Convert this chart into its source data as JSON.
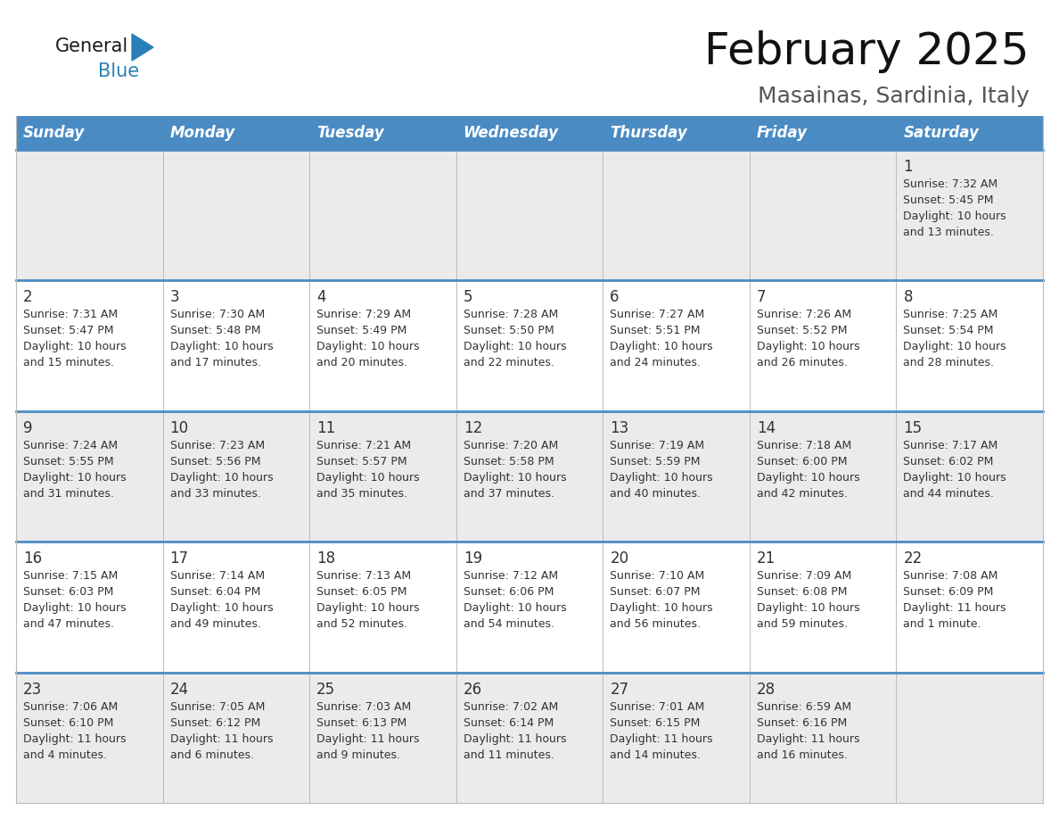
{
  "title": "February 2025",
  "subtitle": "Masainas, Sardinia, Italy",
  "days_of_week": [
    "Sunday",
    "Monday",
    "Tuesday",
    "Wednesday",
    "Thursday",
    "Friday",
    "Saturday"
  ],
  "header_bg": "#4a8bc4",
  "header_text": "#ffffff",
  "row_bg_odd": "#ebebeb",
  "row_bg_even": "#ffffff",
  "border_color": "#4a8bc4",
  "cell_border_color": "#bbbbbb",
  "text_color": "#333333",
  "calendar": [
    [
      null,
      null,
      null,
      null,
      null,
      null,
      {
        "day": 1,
        "sunrise": "7:32 AM",
        "sunset": "5:45 PM",
        "daylight": "10 hours\nand 13 minutes."
      }
    ],
    [
      {
        "day": 2,
        "sunrise": "7:31 AM",
        "sunset": "5:47 PM",
        "daylight": "10 hours\nand 15 minutes."
      },
      {
        "day": 3,
        "sunrise": "7:30 AM",
        "sunset": "5:48 PM",
        "daylight": "10 hours\nand 17 minutes."
      },
      {
        "day": 4,
        "sunrise": "7:29 AM",
        "sunset": "5:49 PM",
        "daylight": "10 hours\nand 20 minutes."
      },
      {
        "day": 5,
        "sunrise": "7:28 AM",
        "sunset": "5:50 PM",
        "daylight": "10 hours\nand 22 minutes."
      },
      {
        "day": 6,
        "sunrise": "7:27 AM",
        "sunset": "5:51 PM",
        "daylight": "10 hours\nand 24 minutes."
      },
      {
        "day": 7,
        "sunrise": "7:26 AM",
        "sunset": "5:52 PM",
        "daylight": "10 hours\nand 26 minutes."
      },
      {
        "day": 8,
        "sunrise": "7:25 AM",
        "sunset": "5:54 PM",
        "daylight": "10 hours\nand 28 minutes."
      }
    ],
    [
      {
        "day": 9,
        "sunrise": "7:24 AM",
        "sunset": "5:55 PM",
        "daylight": "10 hours\nand 31 minutes."
      },
      {
        "day": 10,
        "sunrise": "7:23 AM",
        "sunset": "5:56 PM",
        "daylight": "10 hours\nand 33 minutes."
      },
      {
        "day": 11,
        "sunrise": "7:21 AM",
        "sunset": "5:57 PM",
        "daylight": "10 hours\nand 35 minutes."
      },
      {
        "day": 12,
        "sunrise": "7:20 AM",
        "sunset": "5:58 PM",
        "daylight": "10 hours\nand 37 minutes."
      },
      {
        "day": 13,
        "sunrise": "7:19 AM",
        "sunset": "5:59 PM",
        "daylight": "10 hours\nand 40 minutes."
      },
      {
        "day": 14,
        "sunrise": "7:18 AM",
        "sunset": "6:00 PM",
        "daylight": "10 hours\nand 42 minutes."
      },
      {
        "day": 15,
        "sunrise": "7:17 AM",
        "sunset": "6:02 PM",
        "daylight": "10 hours\nand 44 minutes."
      }
    ],
    [
      {
        "day": 16,
        "sunrise": "7:15 AM",
        "sunset": "6:03 PM",
        "daylight": "10 hours\nand 47 minutes."
      },
      {
        "day": 17,
        "sunrise": "7:14 AM",
        "sunset": "6:04 PM",
        "daylight": "10 hours\nand 49 minutes."
      },
      {
        "day": 18,
        "sunrise": "7:13 AM",
        "sunset": "6:05 PM",
        "daylight": "10 hours\nand 52 minutes."
      },
      {
        "day": 19,
        "sunrise": "7:12 AM",
        "sunset": "6:06 PM",
        "daylight": "10 hours\nand 54 minutes."
      },
      {
        "day": 20,
        "sunrise": "7:10 AM",
        "sunset": "6:07 PM",
        "daylight": "10 hours\nand 56 minutes."
      },
      {
        "day": 21,
        "sunrise": "7:09 AM",
        "sunset": "6:08 PM",
        "daylight": "10 hours\nand 59 minutes."
      },
      {
        "day": 22,
        "sunrise": "7:08 AM",
        "sunset": "6:09 PM",
        "daylight": "11 hours\nand 1 minute."
      }
    ],
    [
      {
        "day": 23,
        "sunrise": "7:06 AM",
        "sunset": "6:10 PM",
        "daylight": "11 hours\nand 4 minutes."
      },
      {
        "day": 24,
        "sunrise": "7:05 AM",
        "sunset": "6:12 PM",
        "daylight": "11 hours\nand 6 minutes."
      },
      {
        "day": 25,
        "sunrise": "7:03 AM",
        "sunset": "6:13 PM",
        "daylight": "11 hours\nand 9 minutes."
      },
      {
        "day": 26,
        "sunrise": "7:02 AM",
        "sunset": "6:14 PM",
        "daylight": "11 hours\nand 11 minutes."
      },
      {
        "day": 27,
        "sunrise": "7:01 AM",
        "sunset": "6:15 PM",
        "daylight": "11 hours\nand 14 minutes."
      },
      {
        "day": 28,
        "sunrise": "6:59 AM",
        "sunset": "6:16 PM",
        "daylight": "11 hours\nand 16 minutes."
      },
      null
    ]
  ],
  "logo_color1": "#1a1a1a",
  "logo_color2": "#2980b9",
  "logo_triangle_color": "#2980b9",
  "title_fontsize": 36,
  "subtitle_fontsize": 18,
  "header_fontsize": 12,
  "day_num_fontsize": 12,
  "cell_text_fontsize": 9
}
